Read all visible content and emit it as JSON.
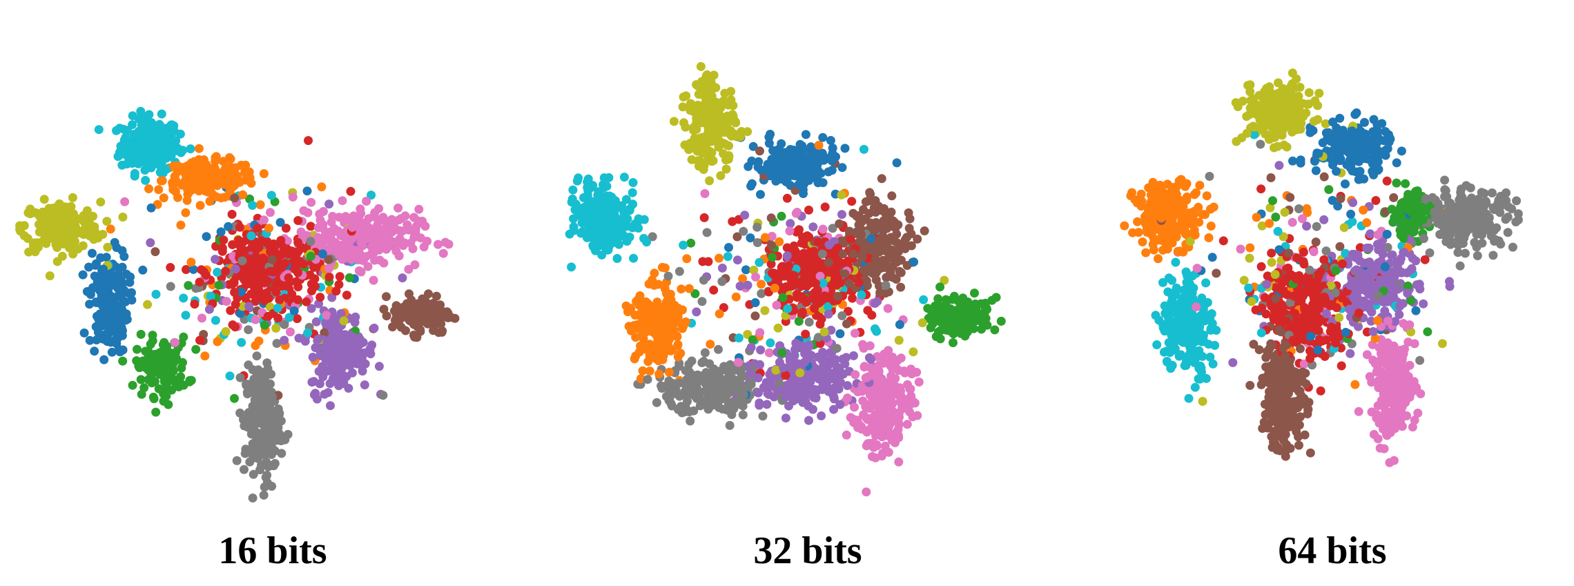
{
  "palette": [
    "#1f77b4",
    "#ff7f0e",
    "#2ca02c",
    "#d62728",
    "#9467bd",
    "#8c564b",
    "#e377c2",
    "#7f7f7f",
    "#bcbd22",
    "#17becf"
  ],
  "chart_data": [
    {
      "type": "scatter",
      "title": "16 bits",
      "xlabel": "",
      "ylabel": "",
      "grid": false,
      "legend": "none",
      "clusters": [
        {
          "class_index": 9,
          "color": "#17becf",
          "center": [
            -1.9,
            1.95
          ],
          "spread": [
            0.45,
            0.42
          ],
          "count": 230
        },
        {
          "class_index": 1,
          "color": "#ff7f0e",
          "center": [
            -0.9,
            1.35
          ],
          "spread": [
            0.7,
            0.3
          ],
          "count": 200
        },
        {
          "class_index": 8,
          "color": "#bcbd22",
          "center": [
            -3.4,
            0.55
          ],
          "spread": [
            0.6,
            0.38
          ],
          "count": 200
        },
        {
          "class_index": 0,
          "color": "#1f77b4",
          "center": [
            -2.6,
            -0.75
          ],
          "spread": [
            0.3,
            0.8
          ],
          "count": 160
        },
        {
          "class_index": 2,
          "color": "#2ca02c",
          "center": [
            -1.7,
            -1.85
          ],
          "spread": [
            0.4,
            0.45
          ],
          "count": 130
        },
        {
          "class_index": 3,
          "color": "#d62728",
          "center": [
            0.1,
            -0.2
          ],
          "spread": [
            0.8,
            0.6
          ],
          "count": 260
        },
        {
          "class_index": 6,
          "color": "#e377c2",
          "center": [
            1.6,
            0.35
          ],
          "spread": [
            0.95,
            0.45
          ],
          "count": 250
        },
        {
          "class_index": 5,
          "color": "#8c564b",
          "center": [
            2.7,
            -0.95
          ],
          "spread": [
            0.45,
            0.3
          ],
          "count": 140
        },
        {
          "class_index": 4,
          "color": "#9467bd",
          "center": [
            1.3,
            -1.55
          ],
          "spread": [
            0.45,
            0.65
          ],
          "count": 190
        },
        {
          "class_index": 7,
          "color": "#7f7f7f",
          "center": [
            0.0,
            -2.8
          ],
          "spread": [
            0.28,
            0.9
          ],
          "count": 200
        }
      ]
    },
    {
      "type": "scatter",
      "title": "32 bits",
      "xlabel": "",
      "ylabel": "",
      "grid": false,
      "legend": "none",
      "clusters": [
        {
          "class_index": 9,
          "color": "#17becf",
          "center": [
            -3.2,
            0.7
          ],
          "spread": [
            0.45,
            0.55
          ],
          "count": 230
        },
        {
          "class_index": 8,
          "color": "#bcbd22",
          "center": [
            -1.4,
            2.3
          ],
          "spread": [
            0.4,
            0.6
          ],
          "count": 210
        },
        {
          "class_index": 0,
          "color": "#1f77b4",
          "center": [
            0.0,
            1.6
          ],
          "spread": [
            0.6,
            0.35
          ],
          "count": 190
        },
        {
          "class_index": 1,
          "color": "#ff7f0e",
          "center": [
            -2.3,
            -1.1
          ],
          "spread": [
            0.4,
            0.7
          ],
          "count": 200
        },
        {
          "class_index": 5,
          "color": "#8c564b",
          "center": [
            1.4,
            0.25
          ],
          "spread": [
            0.55,
            0.7
          ],
          "count": 200
        },
        {
          "class_index": 3,
          "color": "#d62728",
          "center": [
            0.4,
            -0.3
          ],
          "spread": [
            0.7,
            0.6
          ],
          "count": 260
        },
        {
          "class_index": 2,
          "color": "#2ca02c",
          "center": [
            2.8,
            -1.0
          ],
          "spread": [
            0.45,
            0.3
          ],
          "count": 140
        },
        {
          "class_index": 7,
          "color": "#7f7f7f",
          "center": [
            -1.4,
            -2.2
          ],
          "spread": [
            0.85,
            0.45
          ],
          "count": 230
        },
        {
          "class_index": 4,
          "color": "#9467bd",
          "center": [
            0.2,
            -2.0
          ],
          "spread": [
            0.8,
            0.5
          ],
          "count": 220
        },
        {
          "class_index": 6,
          "color": "#e377c2",
          "center": [
            1.5,
            -2.5
          ],
          "spread": [
            0.45,
            0.8
          ],
          "count": 230
        }
      ]
    },
    {
      "type": "scatter",
      "title": "64 bits",
      "xlabel": "",
      "ylabel": "",
      "grid": false,
      "legend": "none",
      "clusters": [
        {
          "class_index": 8,
          "color": "#bcbd22",
          "center": [
            -0.7,
            2.5
          ],
          "spread": [
            0.55,
            0.45
          ],
          "count": 220
        },
        {
          "class_index": 0,
          "color": "#1f77b4",
          "center": [
            0.6,
            1.9
          ],
          "spread": [
            0.6,
            0.4
          ],
          "count": 200
        },
        {
          "class_index": 1,
          "color": "#ff7f0e",
          "center": [
            -2.6,
            0.75
          ],
          "spread": [
            0.55,
            0.5
          ],
          "count": 210
        },
        {
          "class_index": 9,
          "color": "#17becf",
          "center": [
            -2.3,
            -1.1
          ],
          "spread": [
            0.4,
            0.8
          ],
          "count": 210
        },
        {
          "class_index": 2,
          "color": "#2ca02c",
          "center": [
            1.6,
            0.75
          ],
          "spread": [
            0.3,
            0.35
          ],
          "count": 120
        },
        {
          "class_index": 7,
          "color": "#7f7f7f",
          "center": [
            2.6,
            0.7
          ],
          "spread": [
            0.75,
            0.45
          ],
          "count": 220
        },
        {
          "class_index": 3,
          "color": "#d62728",
          "center": [
            -0.2,
            -0.9
          ],
          "spread": [
            0.6,
            0.7
          ],
          "count": 260
        },
        {
          "class_index": 4,
          "color": "#9467bd",
          "center": [
            1.0,
            -0.5
          ],
          "spread": [
            0.65,
            0.6
          ],
          "count": 220
        },
        {
          "class_index": 5,
          "color": "#8c564b",
          "center": [
            -0.6,
            -2.3
          ],
          "spread": [
            0.35,
            0.9
          ],
          "count": 200
        },
        {
          "class_index": 6,
          "color": "#e377c2",
          "center": [
            1.3,
            -2.2
          ],
          "spread": [
            0.35,
            0.8
          ],
          "count": 220
        }
      ]
    }
  ]
}
